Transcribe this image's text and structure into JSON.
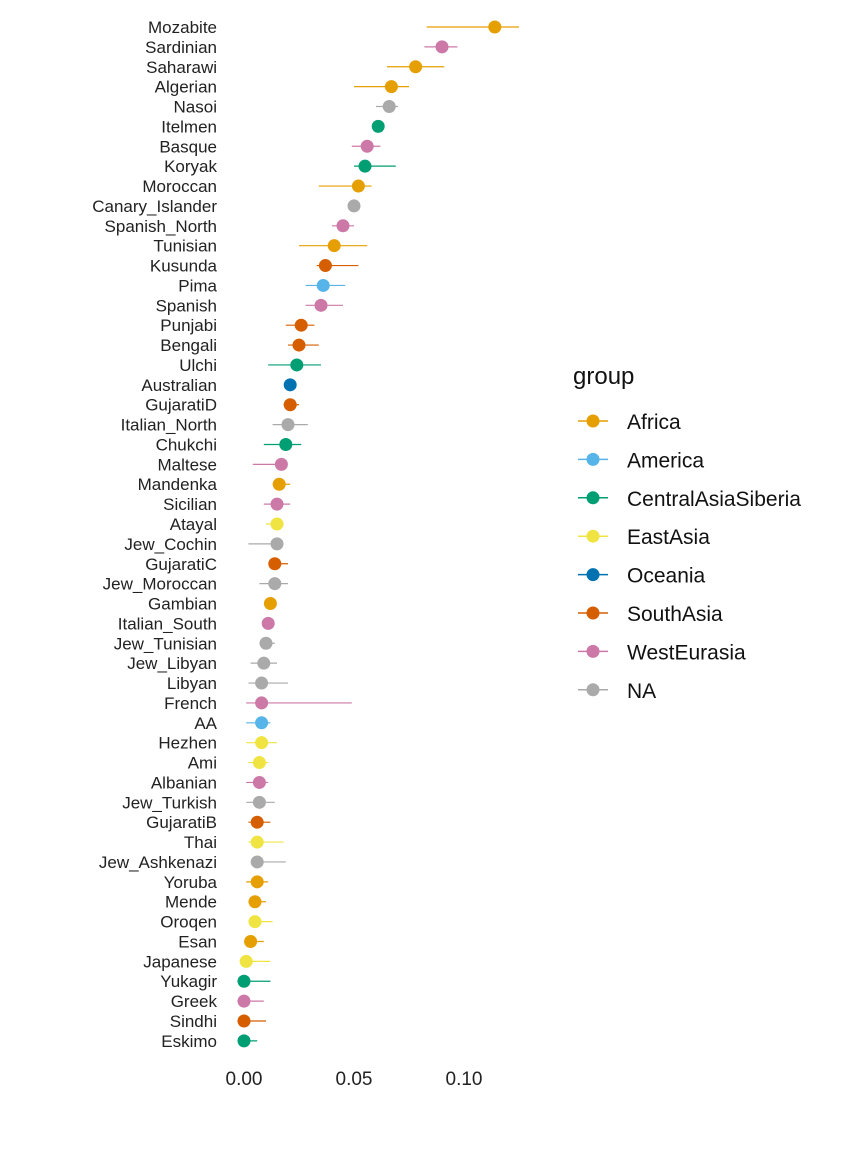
{
  "chart_data": {
    "type": "scatter",
    "subtype": "dot-with-error-bars",
    "title": "",
    "xlabel": "",
    "ylabel": "",
    "xlim": [
      -0.008,
      0.135
    ],
    "xticks": [
      0.0,
      0.05,
      0.1
    ],
    "xtick_labels": [
      "0.00",
      "0.05",
      "0.10"
    ],
    "grid": false,
    "legend_position": "right",
    "legend": {
      "title": "group",
      "entries": [
        {
          "name": "Africa",
          "color": "#E69F00"
        },
        {
          "name": "America",
          "color": "#56B4E9"
        },
        {
          "name": "CentralAsiaSiberia",
          "color": "#009E73"
        },
        {
          "name": "EastAsia",
          "color": "#F0E442"
        },
        {
          "name": "Oceania",
          "color": "#0072B2"
        },
        {
          "name": "SouthAsia",
          "color": "#D55E00"
        },
        {
          "name": "WestEurasia",
          "color": "#CC79A7"
        },
        {
          "name": "NA",
          "color": "#AAAAAA"
        }
      ]
    },
    "points": [
      {
        "label": "Mozabite",
        "group": "Africa",
        "value": 0.114,
        "lo": 0.083,
        "hi": 0.125
      },
      {
        "label": "Sardinian",
        "group": "WestEurasia",
        "value": 0.09,
        "lo": 0.082,
        "hi": 0.097
      },
      {
        "label": "Saharawi",
        "group": "Africa",
        "value": 0.078,
        "lo": 0.065,
        "hi": 0.091
      },
      {
        "label": "Algerian",
        "group": "Africa",
        "value": 0.067,
        "lo": 0.05,
        "hi": 0.075
      },
      {
        "label": "Nasoi",
        "group": "NA",
        "value": 0.066,
        "lo": 0.06,
        "hi": 0.07
      },
      {
        "label": "Itelmen",
        "group": "CentralAsiaSiberia",
        "value": 0.061,
        "lo": 0.059,
        "hi": 0.063
      },
      {
        "label": "Basque",
        "group": "WestEurasia",
        "value": 0.056,
        "lo": 0.049,
        "hi": 0.062
      },
      {
        "label": "Koryak",
        "group": "CentralAsiaSiberia",
        "value": 0.055,
        "lo": 0.05,
        "hi": 0.069
      },
      {
        "label": "Moroccan",
        "group": "Africa",
        "value": 0.052,
        "lo": 0.034,
        "hi": 0.058
      },
      {
        "label": "Canary_Islander",
        "group": "NA",
        "value": 0.05,
        "lo": 0.048,
        "hi": 0.052
      },
      {
        "label": "Spanish_North",
        "group": "WestEurasia",
        "value": 0.045,
        "lo": 0.04,
        "hi": 0.05
      },
      {
        "label": "Tunisian",
        "group": "Africa",
        "value": 0.041,
        "lo": 0.025,
        "hi": 0.056
      },
      {
        "label": "Kusunda",
        "group": "SouthAsia",
        "value": 0.037,
        "lo": 0.033,
        "hi": 0.052
      },
      {
        "label": "Pima",
        "group": "America",
        "value": 0.036,
        "lo": 0.028,
        "hi": 0.046
      },
      {
        "label": "Spanish",
        "group": "WestEurasia",
        "value": 0.035,
        "lo": 0.028,
        "hi": 0.045
      },
      {
        "label": "Punjabi",
        "group": "SouthAsia",
        "value": 0.026,
        "lo": 0.019,
        "hi": 0.032
      },
      {
        "label": "Bengali",
        "group": "SouthAsia",
        "value": 0.025,
        "lo": 0.02,
        "hi": 0.034
      },
      {
        "label": "Ulchi",
        "group": "CentralAsiaSiberia",
        "value": 0.024,
        "lo": 0.011,
        "hi": 0.035
      },
      {
        "label": "Australian",
        "group": "Oceania",
        "value": 0.021,
        "lo": 0.02,
        "hi": 0.022
      },
      {
        "label": "GujaratiD",
        "group": "SouthAsia",
        "value": 0.021,
        "lo": 0.018,
        "hi": 0.025
      },
      {
        "label": "Italian_North",
        "group": "NA",
        "value": 0.02,
        "lo": 0.013,
        "hi": 0.029
      },
      {
        "label": "Chukchi",
        "group": "CentralAsiaSiberia",
        "value": 0.019,
        "lo": 0.009,
        "hi": 0.026
      },
      {
        "label": "Maltese",
        "group": "WestEurasia",
        "value": 0.017,
        "lo": 0.004,
        "hi": 0.019
      },
      {
        "label": "Mandenka",
        "group": "Africa",
        "value": 0.016,
        "lo": 0.013,
        "hi": 0.021
      },
      {
        "label": "Sicilian",
        "group": "WestEurasia",
        "value": 0.015,
        "lo": 0.009,
        "hi": 0.021
      },
      {
        "label": "Atayal",
        "group": "EastAsia",
        "value": 0.015,
        "lo": 0.01,
        "hi": 0.018
      },
      {
        "label": "Jew_Cochin",
        "group": "NA",
        "value": 0.015,
        "lo": 0.002,
        "hi": 0.017
      },
      {
        "label": "GujaratiC",
        "group": "SouthAsia",
        "value": 0.014,
        "lo": 0.012,
        "hi": 0.02
      },
      {
        "label": "Jew_Moroccan",
        "group": "NA",
        "value": 0.014,
        "lo": 0.007,
        "hi": 0.02
      },
      {
        "label": "Gambian",
        "group": "Africa",
        "value": 0.012,
        "lo": 0.011,
        "hi": 0.014
      },
      {
        "label": "Italian_South",
        "group": "WestEurasia",
        "value": 0.011,
        "lo": 0.009,
        "hi": 0.013
      },
      {
        "label": "Jew_Tunisian",
        "group": "NA",
        "value": 0.01,
        "lo": 0.007,
        "hi": 0.014
      },
      {
        "label": "Jew_Libyan",
        "group": "NA",
        "value": 0.009,
        "lo": 0.003,
        "hi": 0.015
      },
      {
        "label": "Libyan",
        "group": "NA",
        "value": 0.008,
        "lo": 0.002,
        "hi": 0.02
      },
      {
        "label": "French",
        "group": "WestEurasia",
        "value": 0.008,
        "lo": 0.001,
        "hi": 0.049
      },
      {
        "label": "AA",
        "group": "America",
        "value": 0.008,
        "lo": 0.001,
        "hi": 0.012
      },
      {
        "label": "Hezhen",
        "group": "EastAsia",
        "value": 0.008,
        "lo": 0.001,
        "hi": 0.015
      },
      {
        "label": "Ami",
        "group": "EastAsia",
        "value": 0.007,
        "lo": 0.002,
        "hi": 0.011
      },
      {
        "label": "Albanian",
        "group": "WestEurasia",
        "value": 0.007,
        "lo": 0.001,
        "hi": 0.011
      },
      {
        "label": "Jew_Turkish",
        "group": "NA",
        "value": 0.007,
        "lo": 0.001,
        "hi": 0.014
      },
      {
        "label": "GujaratiB",
        "group": "SouthAsia",
        "value": 0.006,
        "lo": 0.002,
        "hi": 0.012
      },
      {
        "label": "Thai",
        "group": "EastAsia",
        "value": 0.006,
        "lo": 0.002,
        "hi": 0.018
      },
      {
        "label": "Jew_Ashkenazi",
        "group": "NA",
        "value": 0.006,
        "lo": 0.003,
        "hi": 0.019
      },
      {
        "label": "Yoruba",
        "group": "Africa",
        "value": 0.006,
        "lo": 0.001,
        "hi": 0.011
      },
      {
        "label": "Mende",
        "group": "Africa",
        "value": 0.005,
        "lo": 0.002,
        "hi": 0.01
      },
      {
        "label": "Oroqen",
        "group": "EastAsia",
        "value": 0.005,
        "lo": 0.002,
        "hi": 0.013
      },
      {
        "label": "Esan",
        "group": "Africa",
        "value": 0.003,
        "lo": 0.001,
        "hi": 0.009
      },
      {
        "label": "Japanese",
        "group": "EastAsia",
        "value": 0.001,
        "lo": -0.002,
        "hi": 0.012
      },
      {
        "label": "Yukagir",
        "group": "CentralAsiaSiberia",
        "value": 0.0,
        "lo": -0.003,
        "hi": 0.012
      },
      {
        "label": "Greek",
        "group": "WestEurasia",
        "value": 0.0,
        "lo": -0.003,
        "hi": 0.009
      },
      {
        "label": "Sindhi",
        "group": "SouthAsia",
        "value": 0.0,
        "lo": -0.003,
        "hi": 0.01
      },
      {
        "label": "Eskimo",
        "group": "CentralAsiaSiberia",
        "value": 0.0,
        "lo": -0.002,
        "hi": 0.006
      }
    ]
  }
}
